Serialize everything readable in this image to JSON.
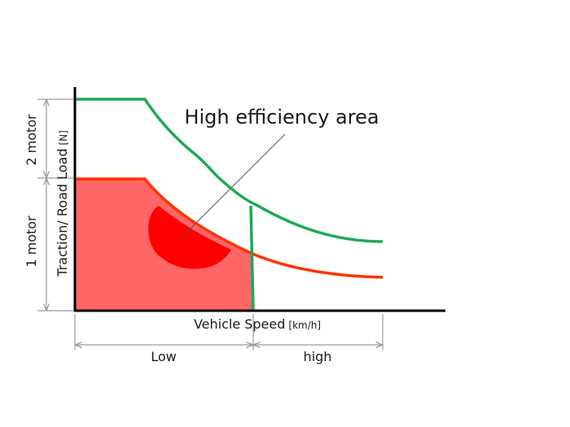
{
  "annotation": "High efficiency area",
  "y_axis": {
    "label_main": "Traction/ Road Load",
    "label_unit": "[N]",
    "bracket_upper": "2 motor",
    "bracket_lower": "1 motor"
  },
  "x_axis": {
    "label_main": "Vehicle Speed",
    "label_unit": "[km/h]",
    "range_low": "Low",
    "range_high": "high"
  },
  "colors": {
    "two_motor_curve": "#1aaa55",
    "one_motor_curve": "#ff3300",
    "one_motor_fill": "#ff6666",
    "efficiency_area": "#ff0000",
    "axis": "#000000",
    "dimension_lines": "#999999"
  }
}
